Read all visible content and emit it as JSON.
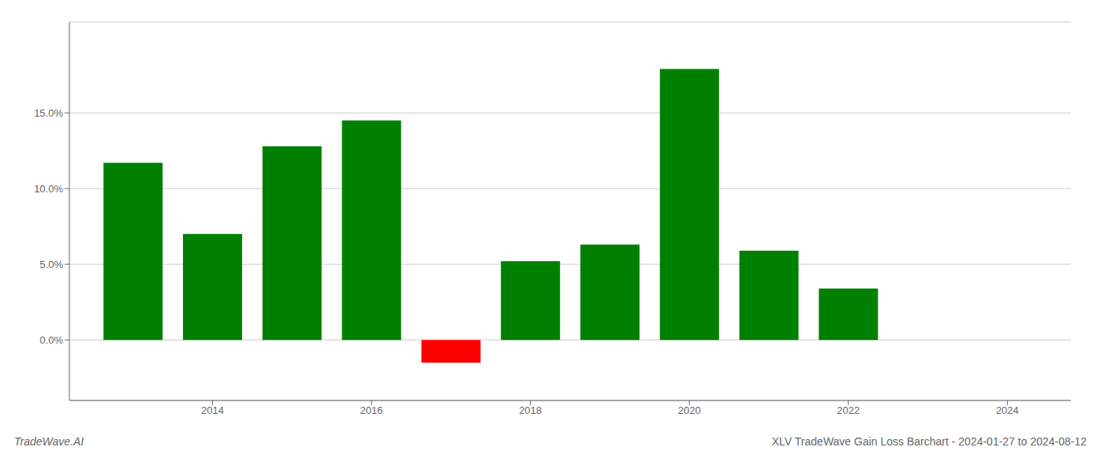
{
  "chart_data": {
    "type": "bar",
    "title": "XLV TradeWave Gain Loss Barchart - 2024-01-27 to 2024-08-12",
    "annotations": [
      "TradeWave.AI"
    ],
    "x": [
      2013,
      2014,
      2015,
      2016,
      2017,
      2018,
      2019,
      2020,
      2021,
      2022
    ],
    "values": [
      0.117,
      0.07,
      0.128,
      0.145,
      -0.015,
      0.052,
      0.063,
      0.179,
      0.059,
      0.034
    ],
    "colors": [
      "#008000",
      "#008000",
      "#008000",
      "#008000",
      "#FF0000",
      "#008000",
      "#008000",
      "#008000",
      "#008000",
      "#008000"
    ],
    "xlim": [
      2012.2,
      2024.8
    ],
    "ylim": [
      -0.04,
      0.21
    ],
    "xticks": [
      2014,
      2016,
      2018,
      2020,
      2022,
      2024
    ],
    "yticks": [
      {
        "value": 0.0,
        "label": "0.0%"
      },
      {
        "value": 0.05,
        "label": "5.0%"
      },
      {
        "value": 0.1,
        "label": "10.0%"
      },
      {
        "value": 0.15,
        "label": "15.0%"
      }
    ],
    "grid": true
  }
}
